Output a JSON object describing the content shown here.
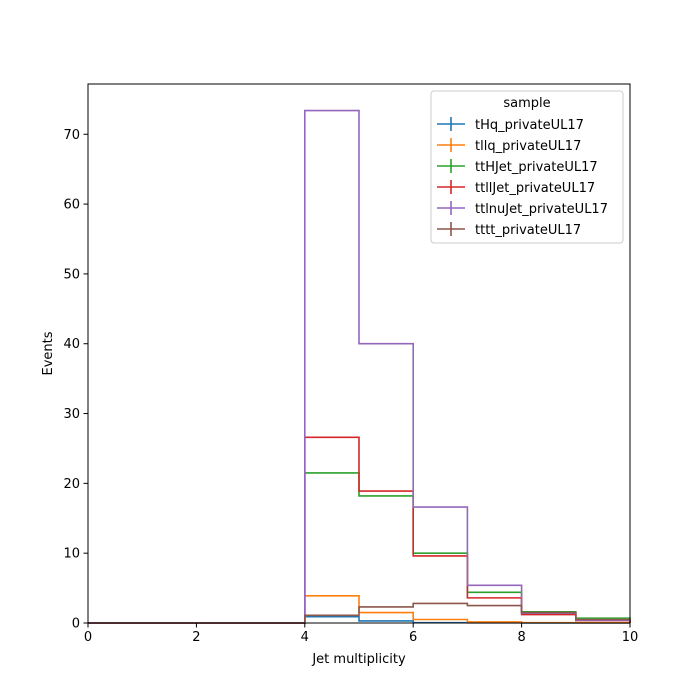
{
  "chart_data": {
    "type": "line",
    "title": "",
    "xlabel": "Jet multiplicity",
    "ylabel": "Events",
    "xlim": [
      0,
      10
    ],
    "ylim": [
      0,
      77.2
    ],
    "xticks": [
      0,
      2,
      4,
      6,
      8,
      10
    ],
    "yticks": [
      0,
      10,
      20,
      30,
      40,
      50,
      60,
      70
    ],
    "bin_edges": [
      0,
      1,
      2,
      3,
      4,
      5,
      6,
      7,
      8,
      9,
      10
    ],
    "grid": false,
    "legend": {
      "title": "sample",
      "placement": "top-right"
    },
    "series": [
      {
        "name": "tHq_privateUL17",
        "color": "#1f77b4",
        "values": [
          0,
          0,
          0,
          0,
          0.9,
          0.3,
          0.05,
          0.02,
          0.01,
          0
        ]
      },
      {
        "name": "tllq_privateUL17",
        "color": "#ff7f0e",
        "values": [
          0,
          0,
          0,
          0,
          3.9,
          1.5,
          0.5,
          0.15,
          0.05,
          0.02
        ]
      },
      {
        "name": "ttHJet_privateUL17",
        "color": "#2ca02c",
        "values": [
          0,
          0,
          0,
          0,
          21.5,
          18.2,
          10.0,
          4.4,
          1.6,
          0.7
        ]
      },
      {
        "name": "ttllJet_privateUL17",
        "color": "#d62728",
        "values": [
          0,
          0,
          0,
          0,
          26.6,
          18.9,
          9.6,
          3.6,
          1.2,
          0.35
        ]
      },
      {
        "name": "ttlnuJet_privateUL17",
        "color": "#9467bd",
        "values": [
          0,
          0,
          0,
          0,
          73.4,
          40.0,
          16.6,
          5.4,
          1.4,
          0.4
        ]
      },
      {
        "name": "tttt_privateUL17",
        "color": "#8c564b",
        "values": [
          0,
          0,
          0,
          0,
          1.1,
          2.3,
          2.8,
          2.5,
          1.5,
          0.5
        ]
      }
    ]
  }
}
